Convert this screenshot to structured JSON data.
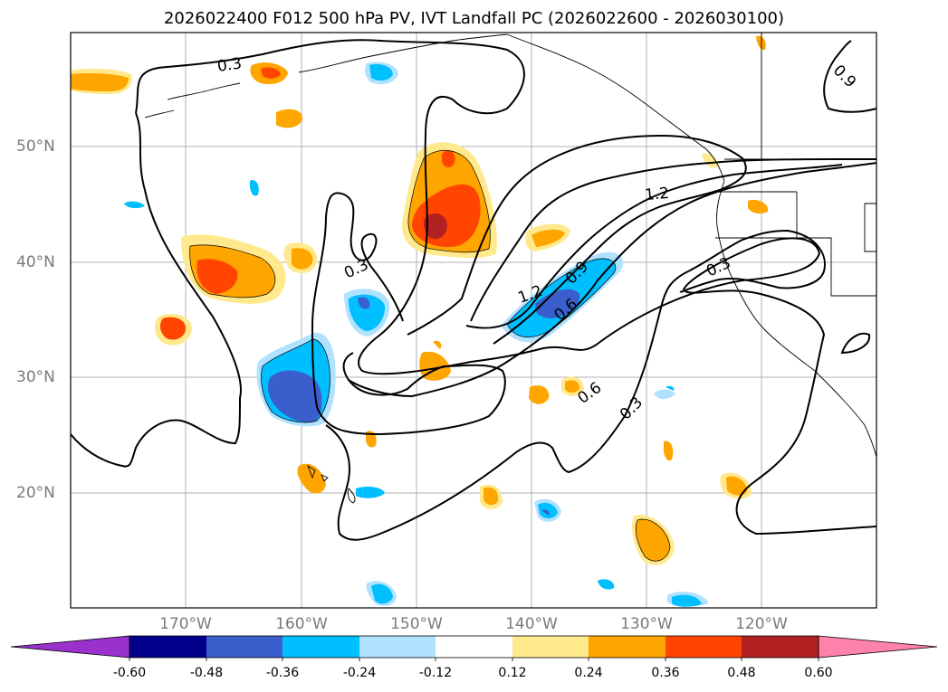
{
  "title": "2026022400 F012 500 hPa PV, IVT Landfall PC (2026022600 - 2026030100)",
  "lat_labels": [
    "50°N",
    "40°N",
    "30°N",
    "20°N"
  ],
  "lon_labels": [
    "170°W",
    "160°W",
    "150°W",
    "140°W",
    "130°W",
    "120°W"
  ],
  "contour_labels": [
    "0.3",
    "0.9",
    "1.2",
    "0.3",
    "0.3",
    "1.2",
    "0.9",
    "0.6",
    "0.6",
    "0.3"
  ],
  "colorbar": {
    "ticks": [
      "-0.60",
      "-0.48",
      "-0.36",
      "-0.24",
      "-0.12",
      "0.12",
      "0.24",
      "0.36",
      "0.48",
      "0.60"
    ],
    "colors": [
      "#9932cc",
      "#00008b",
      "#3a5fcd",
      "#00bfff",
      "#b0e2ff",
      "#ffffff",
      "#ffe98c",
      "#ffa500",
      "#ff4500",
      "#b22222",
      "#ff82ab"
    ]
  },
  "colors": {
    "neg_dark": "#3a5fcd",
    "neg_mid": "#00bfff",
    "neg_light": "#b0e2ff",
    "pos_light": "#ffe98c",
    "pos_mid": "#ffa500",
    "pos_high": "#ff4500",
    "pos_max": "#b22222",
    "grid": "#b0b0b0",
    "label_gray": "#7a7a7a"
  }
}
